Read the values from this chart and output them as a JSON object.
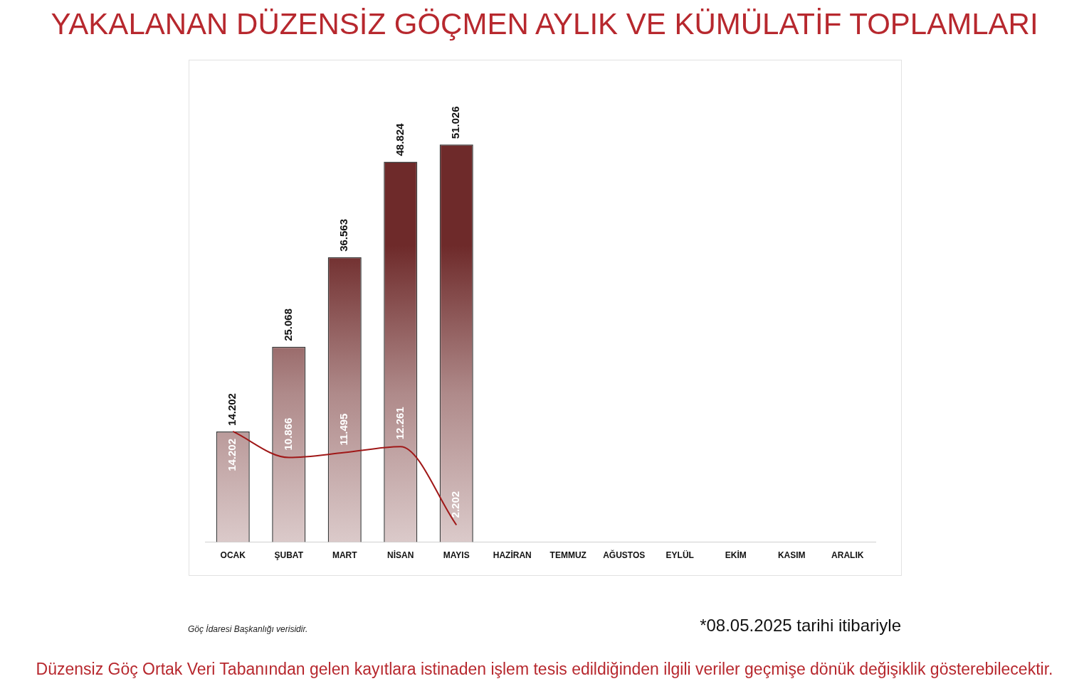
{
  "chart_data": {
    "type": "bar",
    "title": "YAKALANAN DÜZENSİZ GÖÇMEN AYLIK VE KÜMÜLATİF TOPLAMLARI",
    "categories": [
      "OCAK",
      "ŞUBAT",
      "MART",
      "NİSAN",
      "MAYIS",
      "HAZİRAN",
      "TEMMUZ",
      "AĞUSTOS",
      "EYLÜL",
      "EKİM",
      "KASIM",
      "ARALIK"
    ],
    "series": [
      {
        "color": "#6e2a2a",
        "values": [
          14202,
          25068,
          36563,
          48824,
          51026,
          null,
          null,
          null,
          null,
          null,
          null,
          null
        ],
        "value_labels": [
          "14.202",
          "25.068",
          "36.563",
          "48.824",
          "51.026",
          null,
          null,
          null,
          null,
          null,
          null,
          null
        ]
      },
      {
        "type": "line",
        "color": "#a01818",
        "values": [
          14202,
          10866,
          11495,
          12261,
          2202,
          null,
          null,
          null,
          null,
          null,
          null,
          null
        ],
        "value_labels": [
          "14.202",
          "10.866",
          "11.495",
          "12.261",
          "2.202",
          null,
          null,
          null,
          null,
          null,
          null,
          null
        ]
      }
    ],
    "grid": false,
    "legend": false,
    "tick_labels": "x",
    "marker": "none",
    "annotations": [
      "Göç İdaresi Başkanlığı verisidir.",
      "*08.05.2025 tarihi itibariyle",
      "Düzensiz Göç Ortak Veri Tabanından gelen kayıtlara istinaden işlem tesis edildiğinden ilgili veriler geçmişe dönük değişiklik gösterebilecektir."
    ]
  }
}
